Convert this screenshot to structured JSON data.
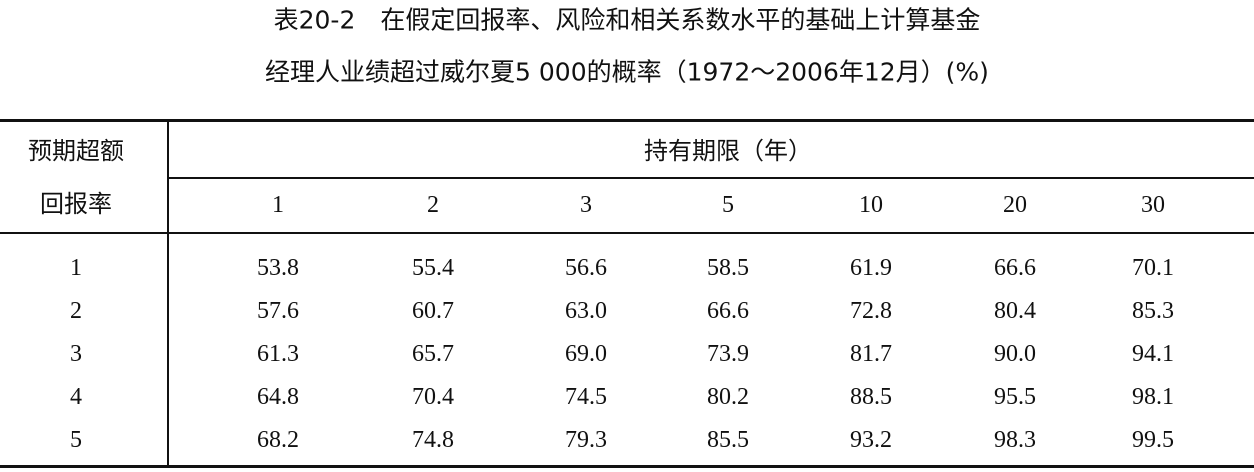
{
  "title": {
    "lines": [
      "表20-2　在假定回报率、风险和相关系数水平的基础上计算基金",
      "经理人业绩超过威尔夏5 000的概率（1972～2006年12月）(%)"
    ]
  },
  "table": {
    "row_header": [
      "预期超额",
      "回报率"
    ],
    "column_group": "持有期限（年）",
    "columns": [
      "1",
      "2",
      "3",
      "5",
      "10",
      "20",
      "30"
    ],
    "rows": [
      [
        "1",
        "53.8",
        "55.4",
        "56.6",
        "58.5",
        "61.9",
        "66.6",
        "70.1"
      ],
      [
        "2",
        "57.6",
        "60.7",
        "63.0",
        "66.6",
        "72.8",
        "80.4",
        "85.3"
      ],
      [
        "3",
        "61.3",
        "65.7",
        "69.0",
        "73.9",
        "81.7",
        "90.0",
        "94.1"
      ],
      [
        "4",
        "64.8",
        "70.4",
        "74.5",
        "80.2",
        "88.5",
        "95.5",
        "98.1"
      ],
      [
        "5",
        "68.2",
        "74.8",
        "79.3",
        "85.5",
        "93.2",
        "98.3",
        "99.5"
      ]
    ]
  }
}
